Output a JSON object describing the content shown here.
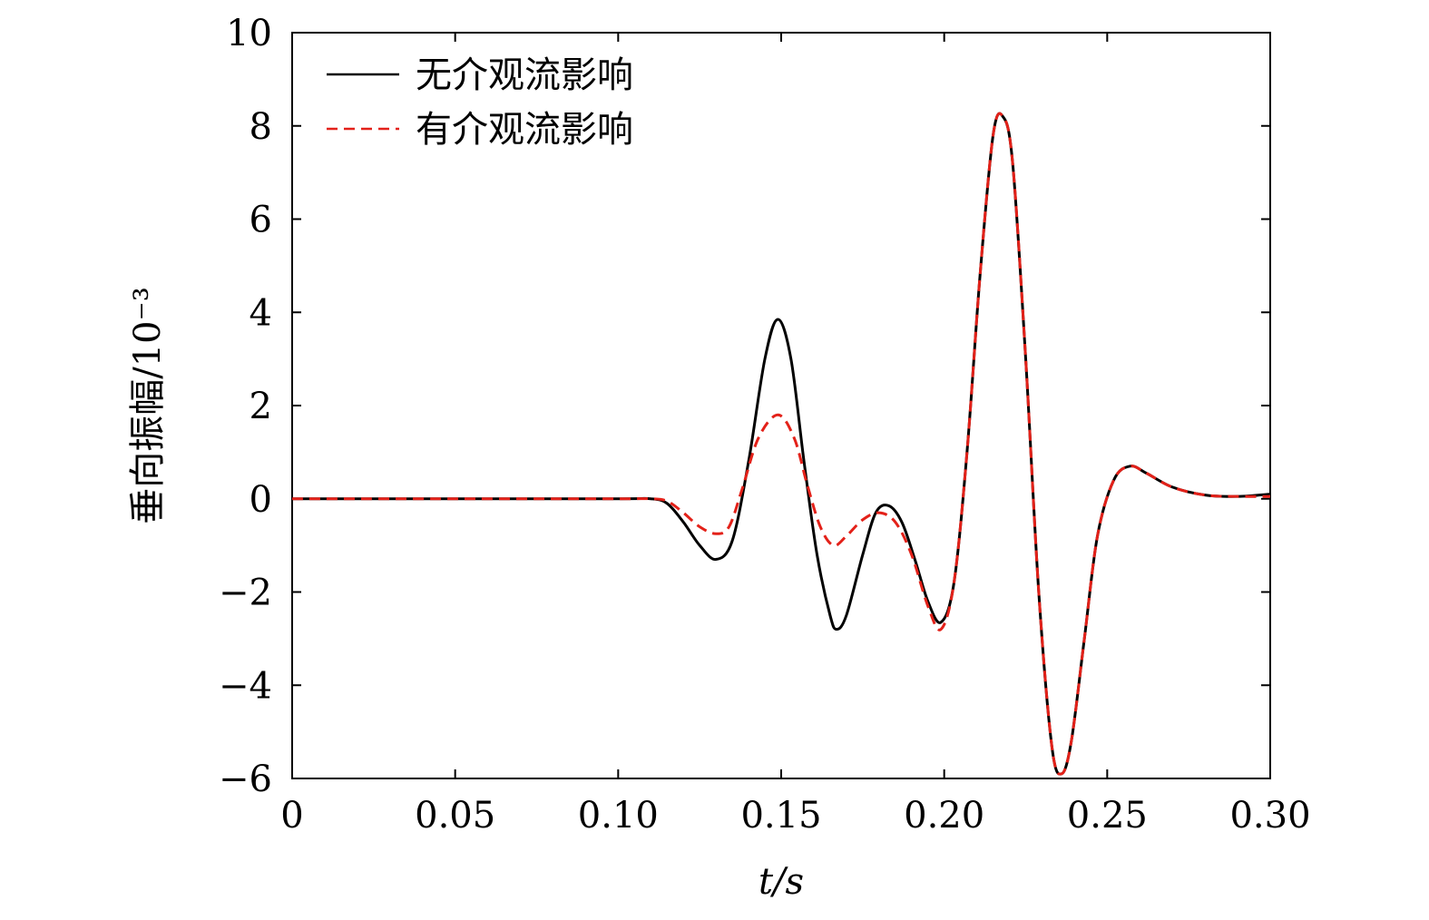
{
  "chart_data": {
    "type": "line",
    "xlabel": "t/s",
    "ylabel": "垂向振幅/10⁻³",
    "xlim": [
      0,
      0.3
    ],
    "ylim": [
      -6,
      10
    ],
    "xticks": [
      0,
      0.05,
      0.1,
      0.15,
      0.2,
      0.25,
      0.3
    ],
    "xtick_labels": [
      "0",
      "0.05",
      "0.10",
      "0.15",
      "0.20",
      "0.25",
      "0.30"
    ],
    "yticks": [
      -6,
      -4,
      -2,
      0,
      2,
      4,
      6,
      8,
      10
    ],
    "ytick_labels": [
      "−6",
      "−4",
      "−2",
      "0",
      "2",
      "4",
      "6",
      "8",
      "10"
    ],
    "grid": false,
    "legend_position": "top-left",
    "series": [
      {
        "name": "无介观流影响",
        "color": "#000000",
        "style": "solid",
        "points": [
          [
            0,
            0
          ],
          [
            0.05,
            0
          ],
          [
            0.1,
            0
          ],
          [
            0.11,
            0
          ],
          [
            0.115,
            -0.1
          ],
          [
            0.12,
            -0.5
          ],
          [
            0.125,
            -1.0
          ],
          [
            0.13,
            -1.3
          ],
          [
            0.135,
            -0.9
          ],
          [
            0.14,
            0.8
          ],
          [
            0.145,
            3.0
          ],
          [
            0.149,
            3.85
          ],
          [
            0.153,
            3.0
          ],
          [
            0.157,
            0.8
          ],
          [
            0.161,
            -1.2
          ],
          [
            0.165,
            -2.5
          ],
          [
            0.167,
            -2.8
          ],
          [
            0.17,
            -2.5
          ],
          [
            0.175,
            -1.2
          ],
          [
            0.179,
            -0.3
          ],
          [
            0.183,
            -0.15
          ],
          [
            0.187,
            -0.5
          ],
          [
            0.191,
            -1.3
          ],
          [
            0.195,
            -2.2
          ],
          [
            0.199,
            -2.65
          ],
          [
            0.203,
            -1.8
          ],
          [
            0.207,
            1.0
          ],
          [
            0.211,
            4.8
          ],
          [
            0.215,
            7.8
          ],
          [
            0.218,
            8.2
          ],
          [
            0.221,
            7.2
          ],
          [
            0.225,
            3.0
          ],
          [
            0.229,
            -2.0
          ],
          [
            0.233,
            -5.3
          ],
          [
            0.236,
            -5.9
          ],
          [
            0.239,
            -5.2
          ],
          [
            0.243,
            -3.0
          ],
          [
            0.247,
            -0.8
          ],
          [
            0.252,
            0.4
          ],
          [
            0.257,
            0.7
          ],
          [
            0.262,
            0.55
          ],
          [
            0.27,
            0.25
          ],
          [
            0.28,
            0.08
          ],
          [
            0.29,
            0.05
          ],
          [
            0.3,
            0.1
          ]
        ]
      },
      {
        "name": "有介观流影响",
        "color": "#e32119",
        "style": "dashed",
        "points": [
          [
            0,
            0
          ],
          [
            0.05,
            0
          ],
          [
            0.1,
            0
          ],
          [
            0.11,
            0
          ],
          [
            0.115,
            -0.05
          ],
          [
            0.12,
            -0.3
          ],
          [
            0.125,
            -0.6
          ],
          [
            0.13,
            -0.75
          ],
          [
            0.134,
            -0.6
          ],
          [
            0.138,
            0.2
          ],
          [
            0.143,
            1.3
          ],
          [
            0.149,
            1.8
          ],
          [
            0.154,
            1.3
          ],
          [
            0.158,
            0.3
          ],
          [
            0.162,
            -0.6
          ],
          [
            0.166,
            -1.0
          ],
          [
            0.17,
            -0.8
          ],
          [
            0.175,
            -0.45
          ],
          [
            0.18,
            -0.3
          ],
          [
            0.185,
            -0.5
          ],
          [
            0.19,
            -1.2
          ],
          [
            0.195,
            -2.3
          ],
          [
            0.199,
            -2.8
          ],
          [
            0.203,
            -1.8
          ],
          [
            0.207,
            1.0
          ],
          [
            0.211,
            4.8
          ],
          [
            0.215,
            7.8
          ],
          [
            0.218,
            8.2
          ],
          [
            0.221,
            7.2
          ],
          [
            0.225,
            3.0
          ],
          [
            0.229,
            -2.0
          ],
          [
            0.233,
            -5.3
          ],
          [
            0.236,
            -5.9
          ],
          [
            0.239,
            -5.2
          ],
          [
            0.243,
            -3.0
          ],
          [
            0.247,
            -0.8
          ],
          [
            0.252,
            0.4
          ],
          [
            0.257,
            0.7
          ],
          [
            0.262,
            0.55
          ],
          [
            0.27,
            0.25
          ],
          [
            0.28,
            0.08
          ],
          [
            0.29,
            0.05
          ],
          [
            0.3,
            0.05
          ]
        ]
      }
    ]
  }
}
